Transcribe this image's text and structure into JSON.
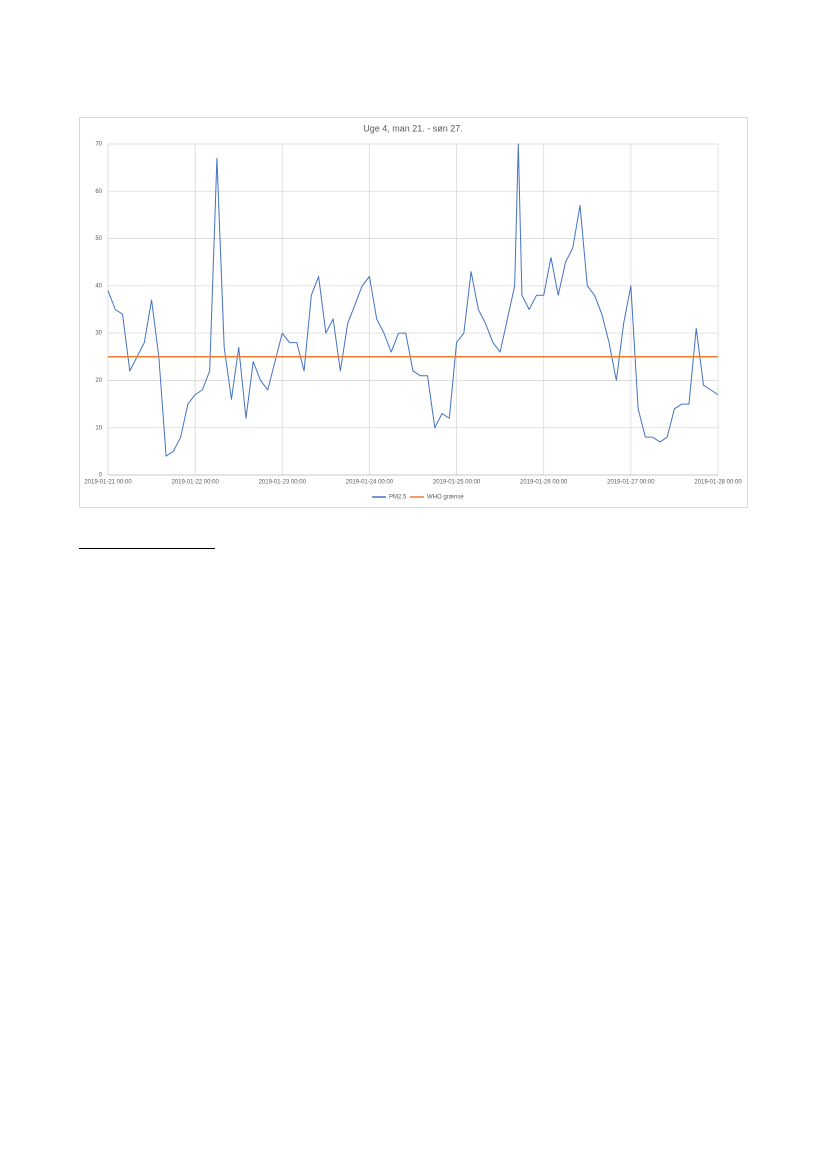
{
  "chart_data": {
    "type": "line",
    "title": "Uge 4, man 21. - søn 27.",
    "series": [
      {
        "name": "PM2.5",
        "color": "#4472c4",
        "x": [
          "2019-01-21 00:00",
          "2019-01-21 02:00",
          "2019-01-21 04:00",
          "2019-01-21 06:00",
          "2019-01-21 08:00",
          "2019-01-21 10:00",
          "2019-01-21 12:00",
          "2019-01-21 14:00",
          "2019-01-21 16:00",
          "2019-01-21 18:00",
          "2019-01-21 20:00",
          "2019-01-21 22:00",
          "2019-01-22 00:00",
          "2019-01-22 02:00",
          "2019-01-22 04:00",
          "2019-01-22 06:00",
          "2019-01-22 08:00",
          "2019-01-22 10:00",
          "2019-01-22 12:00",
          "2019-01-22 14:00",
          "2019-01-22 16:00",
          "2019-01-22 18:00",
          "2019-01-22 20:00",
          "2019-01-22 22:00",
          "2019-01-23 00:00",
          "2019-01-23 02:00",
          "2019-01-23 04:00",
          "2019-01-23 06:00",
          "2019-01-23 08:00",
          "2019-01-23 10:00",
          "2019-01-23 12:00",
          "2019-01-23 14:00",
          "2019-01-23 16:00",
          "2019-01-23 18:00",
          "2019-01-23 20:00",
          "2019-01-23 22:00",
          "2019-01-24 00:00",
          "2019-01-24 02:00",
          "2019-01-24 04:00",
          "2019-01-24 06:00",
          "2019-01-24 08:00",
          "2019-01-24 10:00",
          "2019-01-24 12:00",
          "2019-01-24 14:00",
          "2019-01-24 16:00",
          "2019-01-24 18:00",
          "2019-01-24 20:00",
          "2019-01-24 22:00",
          "2019-01-25 00:00",
          "2019-01-25 02:00",
          "2019-01-25 04:00",
          "2019-01-25 06:00",
          "2019-01-25 08:00",
          "2019-01-25 10:00",
          "2019-01-25 12:00",
          "2019-01-25 14:00",
          "2019-01-25 16:00",
          "2019-01-25 17:00",
          "2019-01-25 18:00",
          "2019-01-25 20:00",
          "2019-01-25 22:00",
          "2019-01-26 00:00",
          "2019-01-26 02:00",
          "2019-01-26 04:00",
          "2019-01-26 06:00",
          "2019-01-26 08:00",
          "2019-01-26 10:00",
          "2019-01-26 12:00",
          "2019-01-26 14:00",
          "2019-01-26 16:00",
          "2019-01-26 18:00",
          "2019-01-26 20:00",
          "2019-01-26 22:00",
          "2019-01-27 00:00",
          "2019-01-27 02:00",
          "2019-01-27 04:00",
          "2019-01-27 06:00",
          "2019-01-27 08:00",
          "2019-01-27 10:00",
          "2019-01-27 12:00",
          "2019-01-27 14:00",
          "2019-01-27 16:00",
          "2019-01-27 18:00",
          "2019-01-27 20:00",
          "2019-01-27 22:00",
          "2019-01-28 00:00"
        ],
        "values": [
          39,
          35,
          34,
          22,
          25,
          28,
          37,
          25,
          4,
          5,
          8,
          15,
          17,
          18,
          22,
          67,
          27,
          16,
          27,
          12,
          24,
          20,
          18,
          24,
          30,
          28,
          28,
          22,
          38,
          42,
          30,
          33,
          22,
          32,
          36,
          40,
          42,
          33,
          30,
          26,
          30,
          30,
          22,
          21,
          21,
          10,
          13,
          12,
          28,
          30,
          43,
          35,
          32,
          28,
          26,
          33,
          40,
          70,
          38,
          35,
          38,
          38,
          46,
          38,
          45,
          48,
          57,
          40,
          38,
          34,
          28,
          20,
          32,
          40,
          14,
          8,
          8,
          7,
          8,
          14,
          15,
          15,
          31,
          19,
          18,
          17
        ]
      },
      {
        "name": "WHO grænse",
        "color": "#ed7d31",
        "x": [
          "2019-01-21 00:00",
          "2019-01-28 00:00"
        ],
        "values": [
          25,
          25
        ]
      }
    ],
    "xlim": [
      "2019-01-21 00:00",
      "2019-01-28 00:00"
    ],
    "xticks": [
      "2019-01-21 00:00",
      "2019-01-22 00:00",
      "2019-01-23 00:00",
      "2019-01-24 00:00",
      "2019-01-25 00:00",
      "2019-01-26 00:00",
      "2019-01-27 00:00",
      "2019-01-28 00:00"
    ],
    "ylim": [
      0,
      70
    ],
    "yticks": [
      0,
      10,
      20,
      30,
      40,
      50,
      60,
      70
    ],
    "grid": true,
    "legend": "bottom"
  }
}
